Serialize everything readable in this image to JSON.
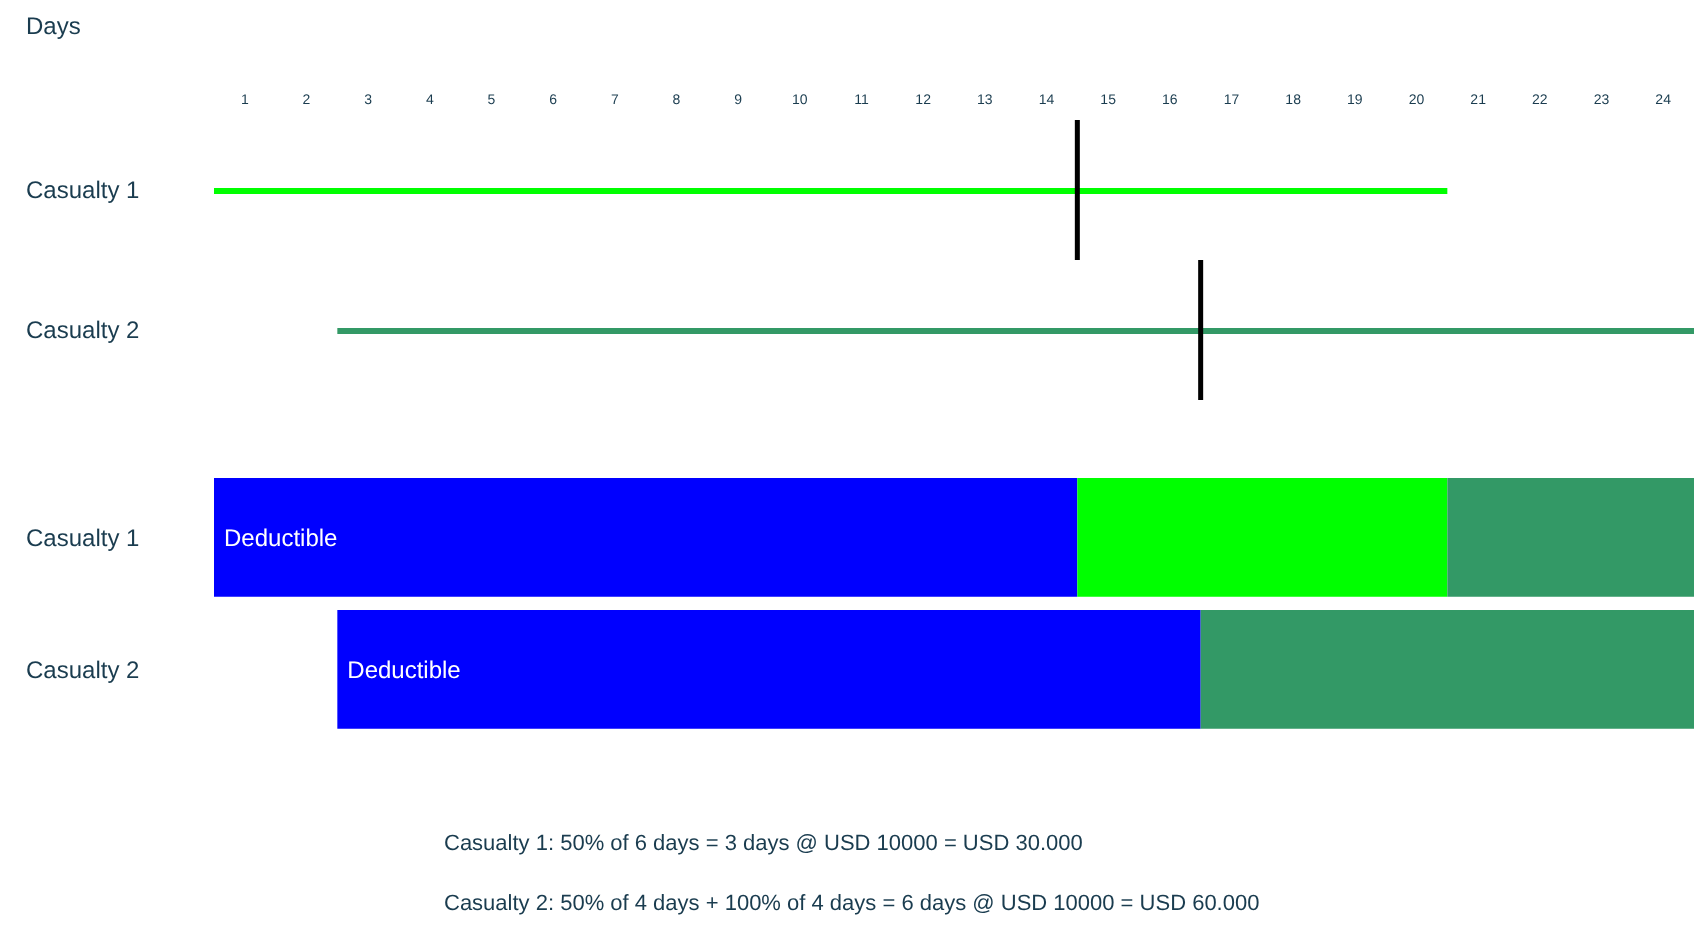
{
  "chart_data": [
    {
      "type": "bar",
      "orientation": "horizontal",
      "xlabel": "Days",
      "categories": [
        "Casualty 1",
        "Casualty 2"
      ],
      "xlim": [
        0.5,
        24.5
      ],
      "xticks": [
        1,
        2,
        3,
        4,
        5,
        6,
        7,
        8,
        9,
        10,
        11,
        12,
        13,
        14,
        15,
        16,
        17,
        18,
        19,
        20,
        21,
        22,
        23,
        24
      ],
      "series": [
        {
          "type": "bar",
          "values": [
            20,
            22
          ],
          "base": [
            0.5,
            2.5
          ],
          "colors": [
            "#00ff00",
            "#339966"
          ]
        },
        {
          "type": "scatter",
          "values": [
            14.5,
            16.5
          ],
          "color": "#000000"
        }
      ]
    },
    {
      "type": "bar",
      "orientation": "horizontal",
      "tick_labels": "y",
      "categories": [
        "Casualty 1",
        "Casualty 2"
      ],
      "xlim": [
        0.5,
        24.5
      ],
      "xticks": [
        1,
        2,
        3,
        4,
        5,
        6,
        7,
        8,
        9,
        10,
        11,
        12,
        13,
        14,
        15,
        16,
        17,
        18,
        19,
        20,
        21,
        22,
        23,
        24
      ],
      "series": [
        {
          "color": "#0000ff",
          "values": [
            14,
            14
          ],
          "base": [
            0.5,
            2.5
          ],
          "value_labels": [
            "Deductible",
            "Deductible"
          ]
        },
        {
          "color": "#00ff00",
          "values": [
            6,
            null
          ],
          "base": [
            14.5,
            null
          ]
        },
        {
          "color": "#339966",
          "values": [
            4,
            8
          ],
          "base": [
            20.5,
            16.5
          ]
        }
      ],
      "annotations": [
        "Casualty 1: 50% of 6 days = 3 days @ USD 10000 = USD 30.000",
        "Casualty 2: 50% of 4 days + 100% of 4 days = 6 days @ USD 10000 = USD 60.000"
      ]
    }
  ]
}
